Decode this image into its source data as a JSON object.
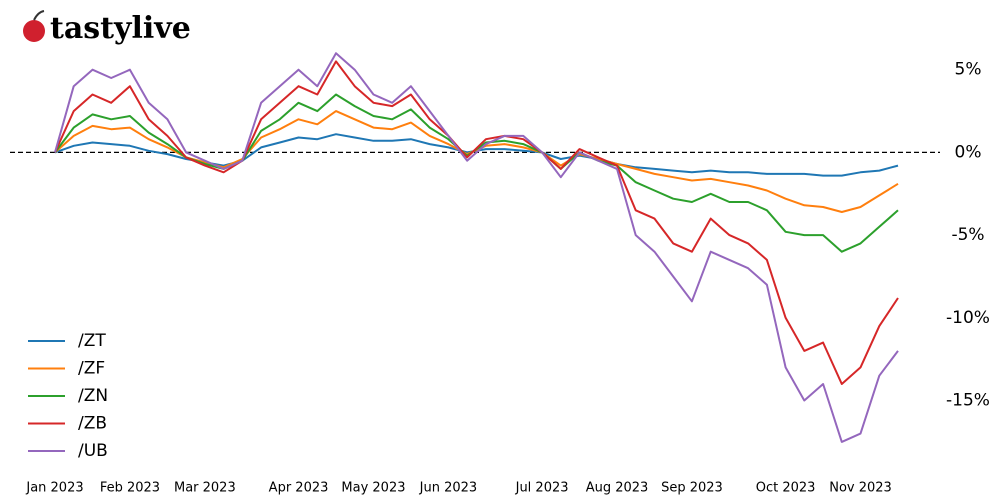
{
  "logo": "tastylive",
  "chart_data": {
    "type": "line",
    "categories": [
      "Jan 2023",
      null,
      null,
      null,
      "Feb 2023",
      null,
      null,
      null,
      "Mar 2023",
      null,
      null,
      null,
      null,
      "Apr 2023",
      null,
      null,
      null,
      "May 2023",
      null,
      null,
      null,
      "Jun 2023",
      null,
      null,
      null,
      null,
      "Jul 2023",
      null,
      null,
      null,
      "Aug 2023",
      null,
      null,
      null,
      "Sep 2023",
      null,
      null,
      null,
      null,
      "Oct 2023",
      null,
      null,
      null,
      "Nov 2023",
      null,
      null
    ],
    "series": [
      {
        "name": "/ZT",
        "color": "#1f77b4",
        "values": [
          0,
          0.4,
          0.6,
          0.5,
          0.4,
          0.1,
          -0.1,
          -0.4,
          -0.6,
          -0.8,
          -0.5,
          0.3,
          0.6,
          0.9,
          0.8,
          1.1,
          0.9,
          0.7,
          0.7,
          0.8,
          0.5,
          0.3,
          0,
          0.2,
          0.2,
          0.1,
          0,
          -0.4,
          -0.2,
          -0.4,
          -0.7,
          -0.9,
          -1,
          -1.1,
          -1.2,
          -1.1,
          -1.2,
          -1.2,
          -1.3,
          -1.3,
          -1.3,
          -1.4,
          -1.4,
          -1.2,
          -1.1,
          -0.8
        ]
      },
      {
        "name": "/ZF",
        "color": "#ff7f0e",
        "values": [
          0,
          1,
          1.6,
          1.4,
          1.5,
          0.8,
          0.3,
          -0.3,
          -0.6,
          -0.9,
          -0.4,
          0.9,
          1.4,
          2,
          1.7,
          2.5,
          2,
          1.5,
          1.4,
          1.8,
          1,
          0.5,
          -0.1,
          0.4,
          0.5,
          0.3,
          0,
          -0.8,
          -0.1,
          -0.4,
          -0.7,
          -1,
          -1.3,
          -1.5,
          -1.7,
          -1.6,
          -1.8,
          -2,
          -2.3,
          -2.8,
          -3.2,
          -3.3,
          -3.6,
          -3.3,
          -2.6,
          -1.9
        ]
      },
      {
        "name": "/ZN",
        "color": "#2ca02c",
        "values": [
          0,
          1.5,
          2.3,
          2,
          2.2,
          1.2,
          0.5,
          -0.3,
          -0.7,
          -1,
          -0.5,
          1.3,
          2,
          3,
          2.5,
          3.5,
          2.8,
          2.2,
          2,
          2.6,
          1.5,
          0.8,
          -0.2,
          0.6,
          0.7,
          0.5,
          0,
          -1,
          0,
          -0.5,
          -0.8,
          -1.8,
          -2.3,
          -2.8,
          -3,
          -2.5,
          -3,
          -3,
          -3.5,
          -4.8,
          -5,
          -5,
          -6,
          -5.5,
          -4.5,
          -3.5
        ]
      },
      {
        "name": "/ZB",
        "color": "#d62728",
        "values": [
          0,
          2.5,
          3.5,
          3,
          4,
          2,
          1,
          -0.3,
          -0.8,
          -1.2,
          -0.5,
          2,
          3,
          4,
          3.5,
          5.5,
          4,
          3,
          2.8,
          3.5,
          2,
          1,
          -0.3,
          0.8,
          1,
          0.8,
          0,
          -1,
          0.2,
          -0.3,
          -0.8,
          -3.5,
          -4,
          -5.5,
          -6,
          -4,
          -5,
          -5.5,
          -6.5,
          -10,
          -12,
          -11.5,
          -14,
          -13,
          -10.5,
          -8.8
        ]
      },
      {
        "name": "/UB",
        "color": "#9467bd",
        "values": [
          0,
          4,
          5,
          4.5,
          5,
          3,
          2,
          0,
          -0.5,
          -1,
          -0.5,
          3,
          4,
          5,
          4,
          6,
          5,
          3.5,
          3,
          4,
          2.5,
          1,
          -0.5,
          0.5,
          1,
          1,
          0,
          -1.5,
          0,
          -0.5,
          -1,
          -5,
          -6,
          -7.5,
          -9,
          -6,
          -6.5,
          -7,
          -8,
          -13,
          -15,
          -14,
          -17.5,
          -17,
          -13.5,
          -12
        ]
      }
    ],
    "ylim": [
      -19.2,
      7.4
    ],
    "yticks": [
      {
        "value": 5,
        "label": "5%"
      },
      {
        "value": 0,
        "label": "0%"
      },
      {
        "value": -5,
        "label": "-5%"
      },
      {
        "value": -10,
        "label": "-10%"
      },
      {
        "value": -15,
        "label": "-15%"
      }
    ],
    "legend": "lower left"
  }
}
